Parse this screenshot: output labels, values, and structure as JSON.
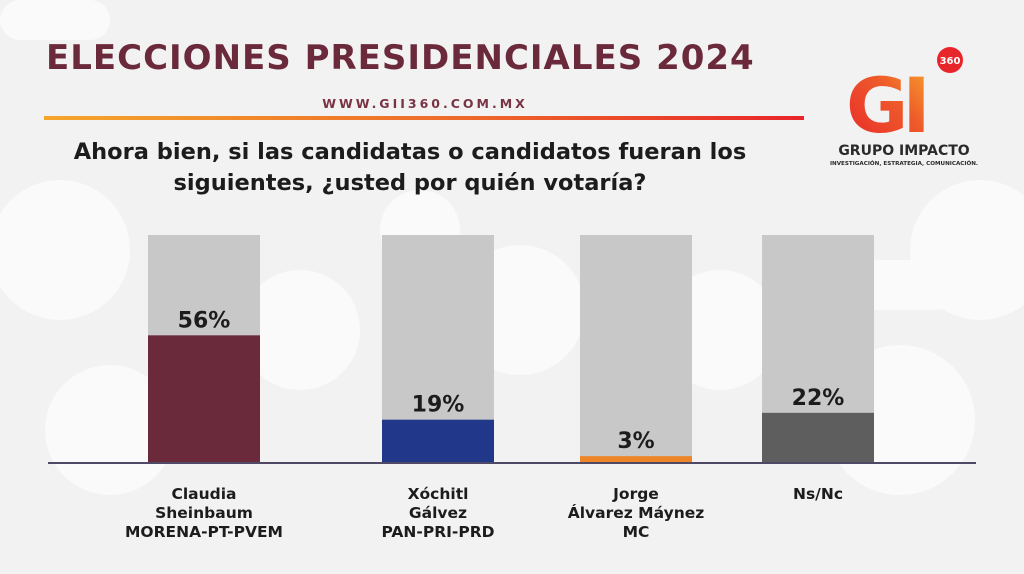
{
  "header": {
    "title": "ELECCIONES PRESIDENCIALES 2024",
    "website": "WWW.GII360.COM.MX",
    "question": "Ahora bien, si las candidatas o candidatos fueran los siguientes, ¿usted por quién votaría?"
  },
  "logo": {
    "mark": "GI",
    "badge": "360",
    "name": "GRUPO IMPACTO",
    "tagline": "INVESTIGACIÓN, ESTRATEGIA, COMUNICACIÓN."
  },
  "colors": {
    "title": "#6b2a3b",
    "track": "#c8c8c8",
    "axis": "#4e4a66"
  },
  "chart_data": {
    "type": "bar",
    "ylim": [
      0,
      100
    ],
    "grid": false,
    "categories": [
      [
        "Claudia",
        "Sheinbaum",
        "MORENA-PT-PVEM"
      ],
      [
        "Xóchitl",
        "Gálvez",
        "PAN-PRI-PRD"
      ],
      [
        "Jorge",
        "Álvarez Máynez",
        "MC"
      ],
      [
        "Ns/Nc"
      ]
    ],
    "values": [
      56,
      19,
      3,
      22
    ],
    "value_labels": [
      "56%",
      "19%",
      "3%",
      "22%"
    ],
    "colors": [
      "#6b2a3b",
      "#21388a",
      "#ee8628",
      "#5e5e5e"
    ]
  }
}
